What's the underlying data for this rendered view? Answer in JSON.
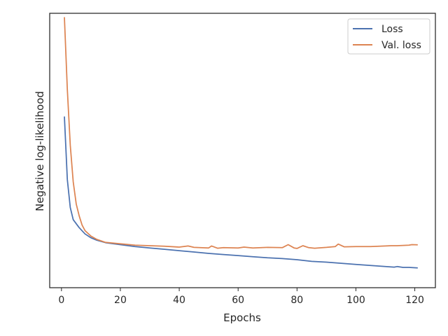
{
  "chart_data": {
    "type": "line",
    "xlabel": "Epochs",
    "ylabel": "Negative log-likelihood",
    "xlim": [
      -4,
      127
    ],
    "ylim": [
      0,
      1
    ],
    "xticks": [
      0,
      20,
      40,
      60,
      80,
      100,
      120
    ],
    "yticks_visible": false,
    "grid": false,
    "legend": {
      "placement": "top-right"
    },
    "series": [
      {
        "name": "Loss",
        "color": "#4c72b0",
        "x": [
          1,
          2,
          3,
          4,
          6,
          8,
          10,
          12,
          15,
          20,
          25,
          30,
          35,
          40,
          45,
          50,
          55,
          60,
          65,
          70,
          75,
          80,
          85,
          90,
          95,
          100,
          105,
          110,
          113,
          114,
          116,
          118,
          121
        ],
        "y": [
          0.624,
          0.394,
          0.292,
          0.248,
          0.219,
          0.196,
          0.182,
          0.173,
          0.164,
          0.157,
          0.15,
          0.145,
          0.14,
          0.135,
          0.13,
          0.125,
          0.121,
          0.117,
          0.113,
          0.109,
          0.106,
          0.102,
          0.096,
          0.093,
          0.089,
          0.085,
          0.081,
          0.077,
          0.075,
          0.077,
          0.074,
          0.074,
          0.072
        ]
      },
      {
        "name": "Val. loss",
        "color": "#dd8452",
        "x": [
          1,
          2,
          3,
          4,
          5,
          6,
          7,
          8,
          10,
          12,
          15,
          20,
          25,
          30,
          35,
          40,
          43,
          45,
          50,
          51,
          53,
          55,
          60,
          62,
          65,
          70,
          75,
          77,
          79,
          80,
          82,
          84,
          86,
          90,
          93,
          94,
          96,
          100,
          105,
          110,
          112,
          114,
          116,
          118,
          119,
          121
        ],
        "y": [
          0.986,
          0.722,
          0.519,
          0.386,
          0.305,
          0.262,
          0.228,
          0.208,
          0.188,
          0.176,
          0.165,
          0.16,
          0.155,
          0.153,
          0.151,
          0.148,
          0.152,
          0.147,
          0.145,
          0.152,
          0.144,
          0.146,
          0.145,
          0.148,
          0.145,
          0.147,
          0.146,
          0.157,
          0.145,
          0.143,
          0.153,
          0.146,
          0.144,
          0.147,
          0.15,
          0.159,
          0.149,
          0.15,
          0.15,
          0.152,
          0.153,
          0.153,
          0.154,
          0.155,
          0.157,
          0.156
        ]
      }
    ]
  }
}
